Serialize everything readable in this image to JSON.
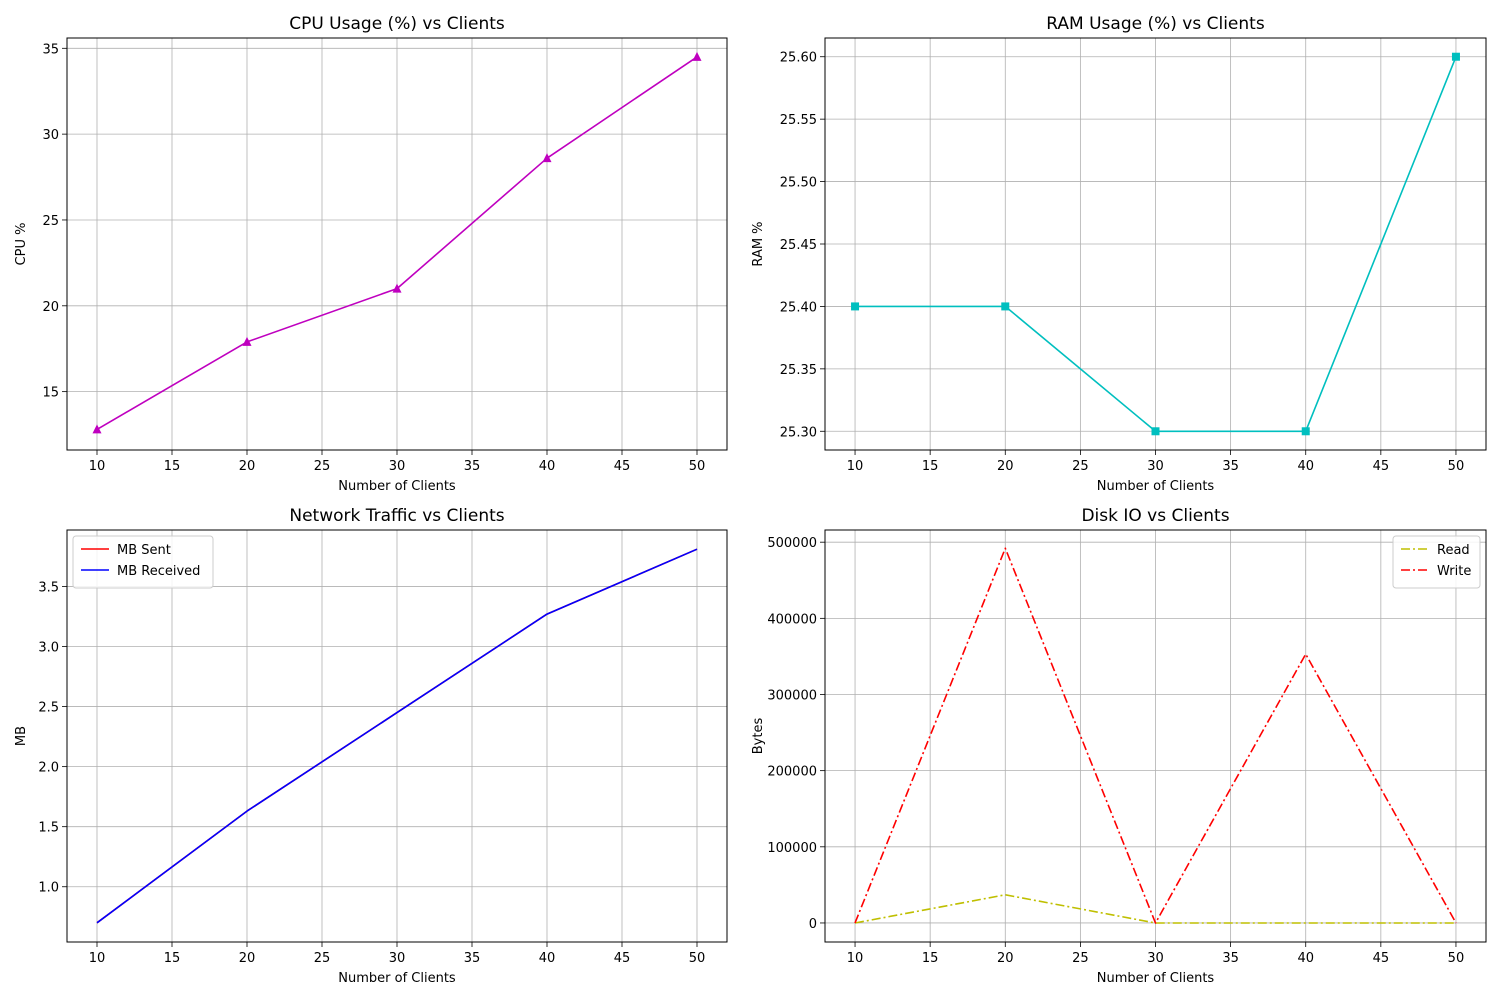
{
  "chart_data": [
    {
      "type": "line",
      "title": "CPU Usage (%) vs Clients",
      "xlabel": "Number of Clients",
      "ylabel": "CPU %",
      "x": [
        10,
        20,
        30,
        40,
        50
      ],
      "xlim": [
        8,
        52
      ],
      "ylim": [
        11.6,
        35.6
      ],
      "xticks": [
        10,
        15,
        20,
        25,
        30,
        35,
        40,
        45,
        50
      ],
      "yticks": [
        15,
        20,
        25,
        30,
        35
      ],
      "ytick_decimals": 0,
      "grid": true,
      "legend": null,
      "series": [
        {
          "values": [
            12.8,
            17.9,
            21.0,
            28.6,
            34.5
          ],
          "color": "#bf00bf",
          "dash": "",
          "marker": "triangle"
        }
      ]
    },
    {
      "type": "line",
      "title": "RAM Usage (%) vs Clients",
      "xlabel": "Number of Clients",
      "ylabel": "RAM %",
      "x": [
        10,
        20,
        30,
        40,
        50
      ],
      "xlim": [
        8,
        52
      ],
      "ylim": [
        25.285,
        25.615
      ],
      "xticks": [
        10,
        15,
        20,
        25,
        30,
        35,
        40,
        45,
        50
      ],
      "yticks": [
        25.3,
        25.35,
        25.4,
        25.45,
        25.5,
        25.55,
        25.6
      ],
      "ytick_decimals": 2,
      "grid": true,
      "legend": null,
      "series": [
        {
          "values": [
            25.4,
            25.4,
            25.3,
            25.3,
            25.6
          ],
          "color": "#00bfbf",
          "dash": "",
          "marker": "square"
        }
      ]
    },
    {
      "type": "line",
      "title": "Network Traffic vs Clients",
      "xlabel": "Number of Clients",
      "ylabel": "MB",
      "x": [
        10,
        20,
        30,
        40,
        50
      ],
      "xlim": [
        8,
        52
      ],
      "ylim": [
        0.54,
        3.97
      ],
      "xticks": [
        10,
        15,
        20,
        25,
        30,
        35,
        40,
        45,
        50
      ],
      "yticks": [
        1.0,
        1.5,
        2.0,
        2.5,
        3.0,
        3.5
      ],
      "ytick_decimals": 1,
      "grid": true,
      "legend": "upper-left",
      "series": [
        {
          "name": "MB Sent",
          "values": [
            0.7,
            1.63,
            2.45,
            3.27,
            3.81
          ],
          "color": "#ff0000",
          "dash": "",
          "marker": "none"
        },
        {
          "name": "MB Received",
          "values": [
            0.7,
            1.63,
            2.45,
            3.27,
            3.81
          ],
          "color": "#0000ff",
          "dash": "",
          "marker": "none"
        }
      ]
    },
    {
      "type": "line",
      "title": "Disk IO vs Clients",
      "xlabel": "Number of Clients",
      "ylabel": "Bytes",
      "x": [
        10,
        20,
        30,
        40,
        50
      ],
      "xlim": [
        8,
        52
      ],
      "ylim": [
        -25000,
        516000
      ],
      "xticks": [
        10,
        15,
        20,
        25,
        30,
        35,
        40,
        45,
        50
      ],
      "yticks": [
        0,
        100000,
        200000,
        300000,
        400000,
        500000
      ],
      "ytick_decimals": 0,
      "grid": true,
      "legend": "upper-right",
      "series": [
        {
          "name": "Read",
          "values": [
            0,
            37000,
            0,
            0,
            0
          ],
          "color": "#bfbf00",
          "dash": "9,3,2,3",
          "marker": "none"
        },
        {
          "name": "Write",
          "values": [
            0,
            492000,
            0,
            353000,
            0
          ],
          "color": "#ff0000",
          "dash": "9,3,2,3",
          "marker": "none"
        }
      ]
    }
  ]
}
